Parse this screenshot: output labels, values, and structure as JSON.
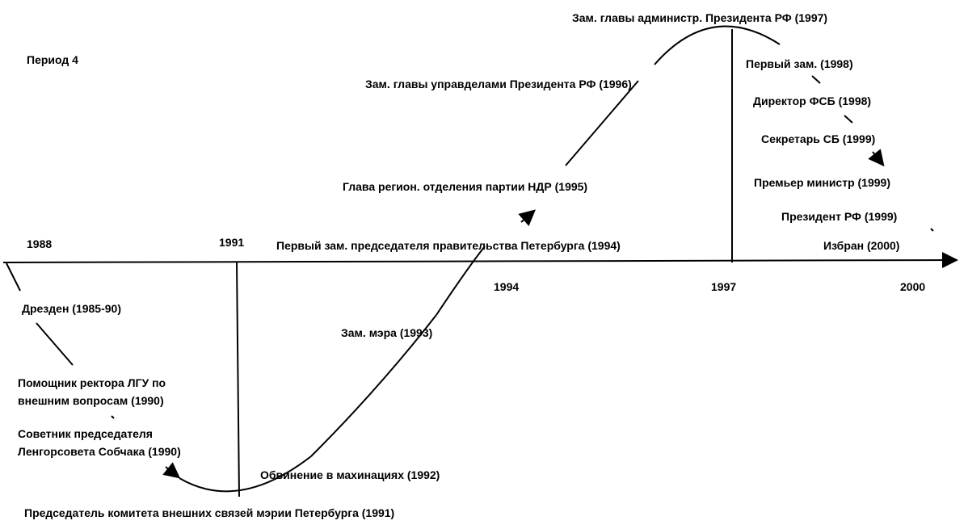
{
  "title": "Период 4",
  "axis": {
    "years": [
      "1988",
      "1991",
      "1994",
      "1997",
      "2000"
    ]
  },
  "events": [
    {
      "lines": [
        "Дрезден (1985-90)"
      ]
    },
    {
      "lines": [
        "Помощник ректора  ЛГУ по",
        "внешним вопросам (1990)"
      ]
    },
    {
      "lines": [
        "Советник председателя",
        "Ленгорсовета Собчака (1990)"
      ]
    },
    {
      "lines": [
        "Председатель комитета внешних связей мэрии Петербурга (1991)"
      ]
    },
    {
      "lines": [
        "Обвинение в махинациях  (1992)"
      ]
    },
    {
      "lines": [
        "Зам. мэра (1993)"
      ]
    },
    {
      "lines": [
        "Первый зам. председателя правительства Петербурга (1994)"
      ]
    },
    {
      "lines": [
        "Глава регион. отделения партии НДР (1995)"
      ]
    },
    {
      "lines": [
        "Зам. главы управделами Президента РФ (1996)"
      ]
    },
    {
      "lines": [
        "Зам. главы администр. Президента РФ (1997)"
      ]
    },
    {
      "lines": [
        "Первый зам. (1998)"
      ]
    },
    {
      "lines": [
        "Директор ФСБ (1998)"
      ]
    },
    {
      "lines": [
        "Секретарь СБ (1999)"
      ]
    },
    {
      "lines": [
        "Премьер министр (1999)"
      ]
    },
    {
      "lines": [
        "Президент РФ (1999)"
      ]
    },
    {
      "lines": [
        "Избран (2000)"
      ]
    }
  ]
}
